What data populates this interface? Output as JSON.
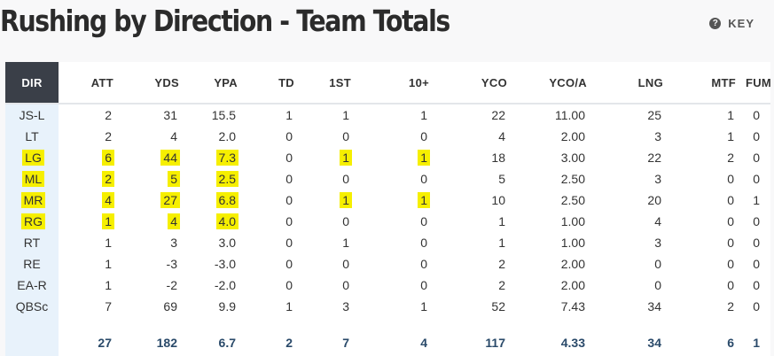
{
  "title": "Rushing by Direction - Team Totals",
  "key_label": "KEY",
  "key_icon": "help-circle-icon",
  "highlight_color": "#f6ef00",
  "columns": [
    "DIR",
    "ATT",
    "YDS",
    "YPA",
    "TD",
    "1ST",
    "10+",
    "YCO",
    "YCO/A",
    "LNG",
    "MTF",
    "FUM"
  ],
  "rows": [
    {
      "dir": "JS-L",
      "att": "2",
      "yds": "31",
      "ypa": "15.5",
      "td": "1",
      "first": "1",
      "tenplus": "1",
      "yco": "22",
      "ycoa": "11.00",
      "lng": "25",
      "mtf": "1",
      "fum": "0",
      "highlight": []
    },
    {
      "dir": "LT",
      "att": "2",
      "yds": "4",
      "ypa": "2.0",
      "td": "0",
      "first": "0",
      "tenplus": "0",
      "yco": "4",
      "ycoa": "2.00",
      "lng": "3",
      "mtf": "1",
      "fum": "0",
      "highlight": []
    },
    {
      "dir": "LG",
      "att": "6",
      "yds": "44",
      "ypa": "7.3",
      "td": "0",
      "first": "1",
      "tenplus": "1",
      "yco": "18",
      "ycoa": "3.00",
      "lng": "22",
      "mtf": "2",
      "fum": "0",
      "highlight": [
        "dir",
        "att",
        "yds",
        "ypa",
        "first",
        "tenplus"
      ]
    },
    {
      "dir": "ML",
      "att": "2",
      "yds": "5",
      "ypa": "2.5",
      "td": "0",
      "first": "0",
      "tenplus": "0",
      "yco": "5",
      "ycoa": "2.50",
      "lng": "3",
      "mtf": "0",
      "fum": "0",
      "highlight": [
        "dir",
        "att",
        "yds",
        "ypa"
      ]
    },
    {
      "dir": "MR",
      "att": "4",
      "yds": "27",
      "ypa": "6.8",
      "td": "0",
      "first": "1",
      "tenplus": "1",
      "yco": "10",
      "ycoa": "2.50",
      "lng": "20",
      "mtf": "0",
      "fum": "1",
      "highlight": [
        "dir",
        "att",
        "yds",
        "ypa",
        "first",
        "tenplus"
      ]
    },
    {
      "dir": "RG",
      "att": "1",
      "yds": "4",
      "ypa": "4.0",
      "td": "0",
      "first": "0",
      "tenplus": "0",
      "yco": "1",
      "ycoa": "1.00",
      "lng": "4",
      "mtf": "0",
      "fum": "0",
      "highlight": [
        "dir",
        "att",
        "yds",
        "ypa"
      ]
    },
    {
      "dir": "RT",
      "att": "1",
      "yds": "3",
      "ypa": "3.0",
      "td": "0",
      "first": "1",
      "tenplus": "0",
      "yco": "1",
      "ycoa": "1.00",
      "lng": "3",
      "mtf": "0",
      "fum": "0",
      "highlight": []
    },
    {
      "dir": "RE",
      "att": "1",
      "yds": "-3",
      "ypa": "-3.0",
      "td": "0",
      "first": "0",
      "tenplus": "0",
      "yco": "2",
      "ycoa": "2.00",
      "lng": "0",
      "mtf": "0",
      "fum": "0",
      "highlight": []
    },
    {
      "dir": "EA-R",
      "att": "1",
      "yds": "-2",
      "ypa": "-2.0",
      "td": "0",
      "first": "0",
      "tenplus": "0",
      "yco": "2",
      "ycoa": "2.00",
      "lng": "0",
      "mtf": "0",
      "fum": "0",
      "highlight": []
    },
    {
      "dir": "QBSc",
      "att": "7",
      "yds": "69",
      "ypa": "9.9",
      "td": "1",
      "first": "3",
      "tenplus": "1",
      "yco": "52",
      "ycoa": "7.43",
      "lng": "34",
      "mtf": "2",
      "fum": "0",
      "highlight": []
    }
  ],
  "totals": {
    "dir": "",
    "att": "27",
    "yds": "182",
    "ypa": "6.7",
    "td": "2",
    "first": "7",
    "tenplus": "4",
    "yco": "117",
    "ycoa": "4.33",
    "lng": "34",
    "mtf": "6",
    "fum": "1"
  }
}
